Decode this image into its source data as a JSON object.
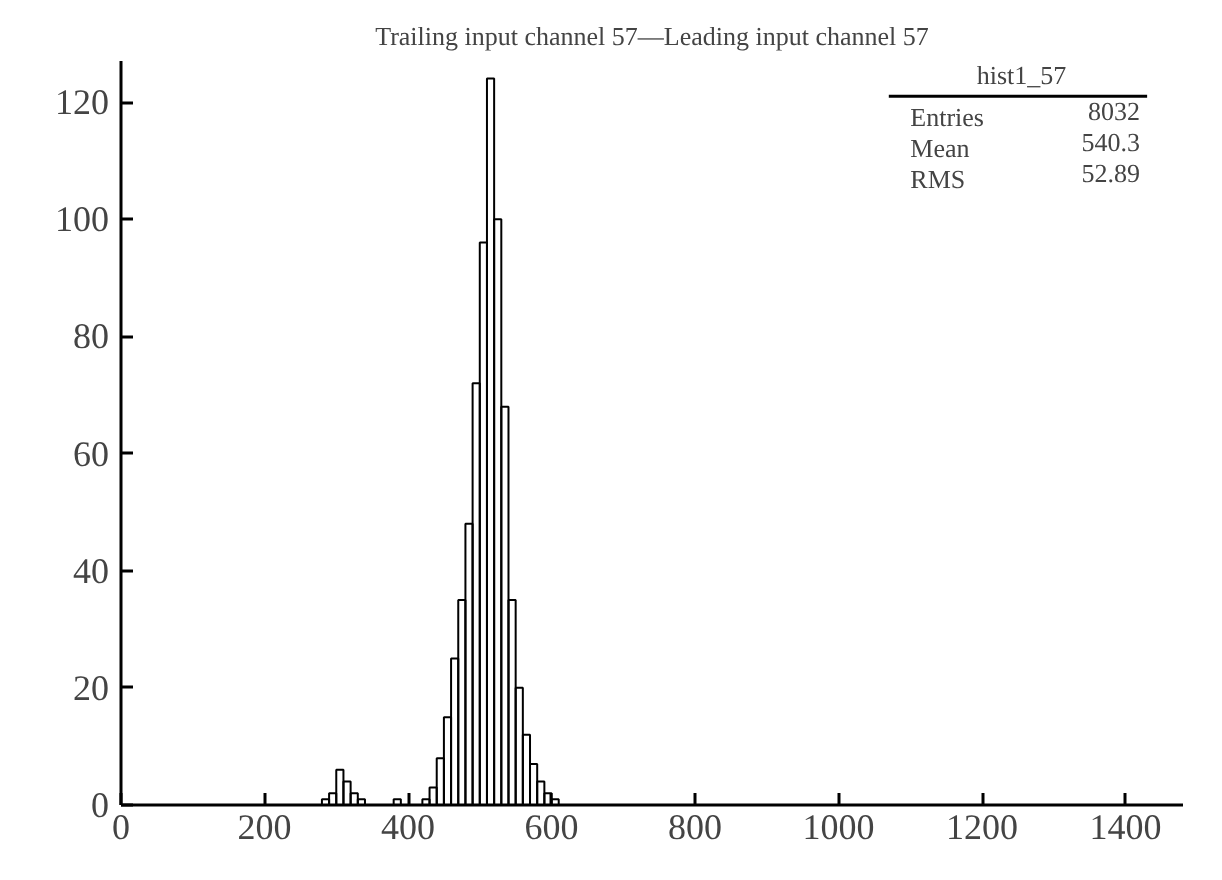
{
  "chart_data": {
    "type": "histogram",
    "title": "Trailing input channel 57—Leading input channel 57",
    "bins": [
      280,
      290,
      300,
      310,
      320,
      330,
      340,
      350,
      360,
      370,
      380,
      390,
      400,
      410,
      420,
      430,
      440,
      450,
      460,
      470,
      480,
      490,
      500,
      510,
      520,
      530,
      540,
      550,
      560,
      570,
      580,
      590,
      600,
      610
    ],
    "values": [
      1,
      2,
      6,
      4,
      2,
      1,
      0,
      0,
      0,
      0,
      1,
      0,
      0,
      0,
      1,
      3,
      8,
      15,
      25,
      35,
      48,
      72,
      96,
      124,
      100,
      68,
      35,
      20,
      12,
      7,
      4,
      2,
      1
    ],
    "color": "#000000",
    "xlim": [
      0,
      1480
    ],
    "ylim": [
      0,
      127
    ],
    "xticks": [
      0,
      200,
      400,
      600,
      800,
      1000,
      1200,
      1400
    ],
    "yticks": [
      0,
      20,
      40,
      60,
      80,
      100,
      120
    ],
    "grid": false,
    "annotations": [
      "hist1_57",
      "Entries 8032",
      "Mean 540.3",
      "RMS 52.89"
    ]
  }
}
